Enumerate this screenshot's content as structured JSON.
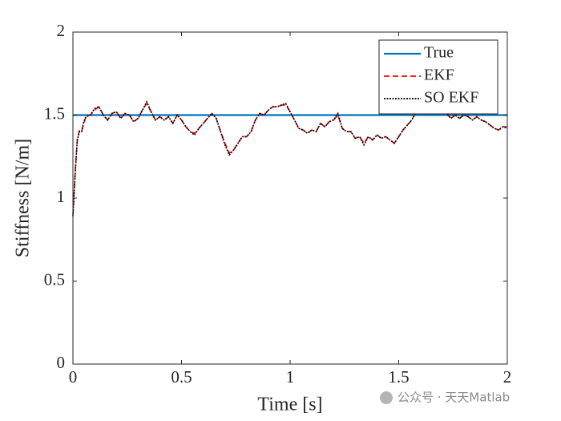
{
  "chart_data": {
    "type": "line",
    "xlabel": "Time [s]",
    "ylabel": "Stiffness [N/m]",
    "xlim": [
      0,
      2
    ],
    "ylim": [
      0,
      2
    ],
    "xticks": [
      0,
      0.5,
      1,
      1.5,
      2
    ],
    "yticks": [
      0,
      0.5,
      1,
      1.5,
      2
    ],
    "grid": false,
    "legend": "upper right",
    "watermark": "公众号 · 天天Matlab",
    "series": [
      {
        "name": "True",
        "color": "#0072bd",
        "dash": "solid",
        "x": [
          0,
          2
        ],
        "values": [
          1.5,
          1.5
        ]
      },
      {
        "name": "EKF",
        "color": "#ff0000",
        "dash": "dashed",
        "x": [
          0,
          0.01,
          0.02,
          0.03,
          0.04,
          0.05,
          0.06,
          0.08,
          0.1,
          0.12,
          0.14,
          0.16,
          0.18,
          0.2,
          0.22,
          0.24,
          0.26,
          0.28,
          0.3,
          0.32,
          0.34,
          0.36,
          0.38,
          0.4,
          0.42,
          0.44,
          0.46,
          0.48,
          0.5,
          0.52,
          0.54,
          0.56,
          0.58,
          0.6,
          0.62,
          0.64,
          0.66,
          0.68,
          0.7,
          0.72,
          0.74,
          0.76,
          0.78,
          0.8,
          0.82,
          0.84,
          0.86,
          0.88,
          0.9,
          0.92,
          0.94,
          0.96,
          0.98,
          1.0,
          1.02,
          1.04,
          1.06,
          1.08,
          1.1,
          1.12,
          1.14,
          1.16,
          1.18,
          1.2,
          1.22,
          1.24,
          1.26,
          1.28,
          1.3,
          1.32,
          1.34,
          1.36,
          1.38,
          1.4,
          1.42,
          1.44,
          1.46,
          1.48,
          1.5,
          1.52,
          1.54,
          1.56,
          1.58,
          1.6,
          1.62,
          1.64,
          1.66,
          1.68,
          1.7,
          1.72,
          1.74,
          1.76,
          1.78,
          1.8,
          1.82,
          1.84,
          1.86,
          1.88,
          1.9,
          1.92,
          1.94,
          1.96,
          1.98,
          2.0
        ],
        "values": [
          0.9,
          1.15,
          1.35,
          1.41,
          1.4,
          1.45,
          1.49,
          1.5,
          1.53,
          1.55,
          1.5,
          1.47,
          1.51,
          1.52,
          1.48,
          1.51,
          1.5,
          1.46,
          1.48,
          1.53,
          1.57,
          1.52,
          1.47,
          1.49,
          1.47,
          1.49,
          1.45,
          1.5,
          1.47,
          1.43,
          1.4,
          1.39,
          1.42,
          1.45,
          1.48,
          1.51,
          1.48,
          1.4,
          1.33,
          1.27,
          1.29,
          1.33,
          1.37,
          1.37,
          1.4,
          1.47,
          1.51,
          1.5,
          1.53,
          1.55,
          1.55,
          1.56,
          1.56,
          1.52,
          1.47,
          1.42,
          1.41,
          1.39,
          1.41,
          1.4,
          1.45,
          1.43,
          1.46,
          1.47,
          1.5,
          1.42,
          1.4,
          1.4,
          1.36,
          1.37,
          1.33,
          1.37,
          1.35,
          1.38,
          1.36,
          1.37,
          1.35,
          1.33,
          1.37,
          1.41,
          1.44,
          1.47,
          1.52,
          1.55,
          1.53,
          1.55,
          1.53,
          1.54,
          1.53,
          1.51,
          1.48,
          1.5,
          1.48,
          1.5,
          1.49,
          1.47,
          1.49,
          1.47,
          1.46,
          1.44,
          1.42,
          1.41,
          1.43,
          1.43
        ]
      },
      {
        "name": "SO EKF",
        "color": "#000000",
        "dash": "dotted",
        "x": [
          0,
          0.01,
          0.02,
          0.03,
          0.04,
          0.05,
          0.06,
          0.08,
          0.1,
          0.12,
          0.14,
          0.16,
          0.18,
          0.2,
          0.22,
          0.24,
          0.26,
          0.28,
          0.3,
          0.32,
          0.34,
          0.36,
          0.38,
          0.4,
          0.42,
          0.44,
          0.46,
          0.48,
          0.5,
          0.52,
          0.54,
          0.56,
          0.58,
          0.6,
          0.62,
          0.64,
          0.66,
          0.68,
          0.7,
          0.72,
          0.74,
          0.76,
          0.78,
          0.8,
          0.82,
          0.84,
          0.86,
          0.88,
          0.9,
          0.92,
          0.94,
          0.96,
          0.98,
          1.0,
          1.02,
          1.04,
          1.06,
          1.08,
          1.1,
          1.12,
          1.14,
          1.16,
          1.18,
          1.2,
          1.22,
          1.24,
          1.26,
          1.28,
          1.3,
          1.32,
          1.34,
          1.36,
          1.38,
          1.4,
          1.42,
          1.44,
          1.46,
          1.48,
          1.5,
          1.52,
          1.54,
          1.56,
          1.58,
          1.6,
          1.62,
          1.64,
          1.66,
          1.68,
          1.7,
          1.72,
          1.74,
          1.76,
          1.78,
          1.8,
          1.82,
          1.84,
          1.86,
          1.88,
          1.9,
          1.92,
          1.94,
          1.96,
          1.98,
          2.0
        ],
        "values": [
          0.89,
          1.14,
          1.35,
          1.4,
          1.4,
          1.46,
          1.49,
          1.5,
          1.54,
          1.55,
          1.5,
          1.47,
          1.51,
          1.52,
          1.48,
          1.51,
          1.5,
          1.46,
          1.48,
          1.53,
          1.58,
          1.52,
          1.47,
          1.49,
          1.47,
          1.49,
          1.45,
          1.5,
          1.47,
          1.43,
          1.4,
          1.38,
          1.42,
          1.45,
          1.48,
          1.51,
          1.48,
          1.4,
          1.32,
          1.26,
          1.29,
          1.33,
          1.37,
          1.37,
          1.4,
          1.47,
          1.51,
          1.5,
          1.53,
          1.55,
          1.55,
          1.56,
          1.57,
          1.52,
          1.47,
          1.42,
          1.41,
          1.39,
          1.41,
          1.4,
          1.45,
          1.43,
          1.46,
          1.47,
          1.51,
          1.42,
          1.4,
          1.4,
          1.36,
          1.37,
          1.32,
          1.37,
          1.35,
          1.38,
          1.36,
          1.37,
          1.35,
          1.33,
          1.37,
          1.41,
          1.44,
          1.47,
          1.52,
          1.55,
          1.53,
          1.55,
          1.53,
          1.54,
          1.53,
          1.51,
          1.48,
          1.5,
          1.48,
          1.5,
          1.49,
          1.47,
          1.49,
          1.47,
          1.46,
          1.44,
          1.42,
          1.41,
          1.43,
          1.42
        ]
      }
    ]
  }
}
